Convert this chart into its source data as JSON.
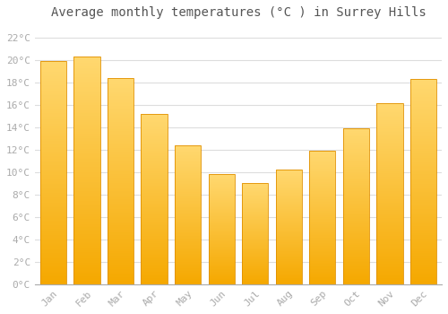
{
  "title": "Average monthly temperatures (°C ) in Surrey Hills",
  "months": [
    "Jan",
    "Feb",
    "Mar",
    "Apr",
    "May",
    "Jun",
    "Jul",
    "Aug",
    "Sep",
    "Oct",
    "Nov",
    "Dec"
  ],
  "values": [
    19.9,
    20.3,
    18.4,
    15.2,
    12.4,
    9.8,
    9.0,
    10.2,
    11.9,
    13.9,
    16.1,
    18.3
  ],
  "bar_color_bottom": "#F5A800",
  "bar_color_top": "#FFD870",
  "bar_edge_color": "#E09000",
  "ylim": [
    0,
    23
  ],
  "ytick_step": 2,
  "background_color": "#ffffff",
  "grid_color": "#dddddd",
  "title_fontsize": 10,
  "tick_fontsize": 8,
  "tick_label_color": "#aaaaaa",
  "font_family": "monospace",
  "bar_width": 0.78
}
